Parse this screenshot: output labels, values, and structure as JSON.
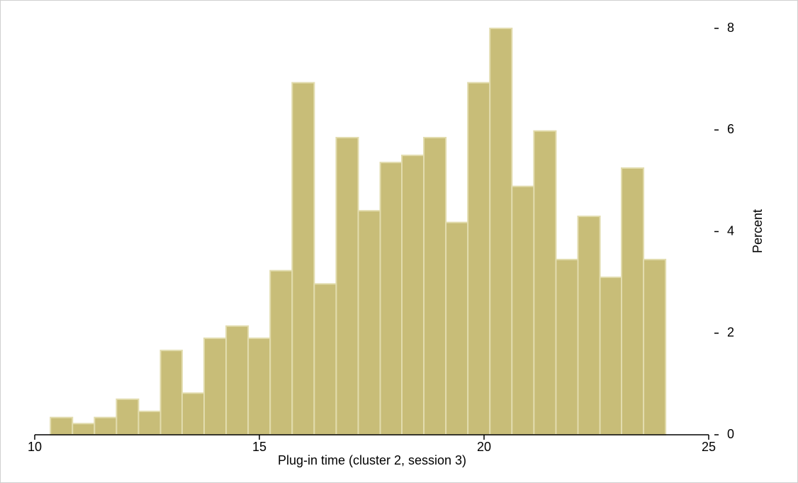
{
  "chart_data": {
    "type": "histogram",
    "xlabel": "Plug-in time (cluster 2, session 3)",
    "ylabel": "Percent",
    "bins": [
      10.35,
      10.84,
      11.33,
      11.82,
      12.31,
      12.8,
      13.28,
      13.77,
      14.26,
      14.75,
      15.24,
      15.73,
      16.22,
      16.71,
      17.2,
      17.69,
      18.17,
      18.66,
      19.15,
      19.64,
      20.13,
      20.62,
      21.11,
      21.6,
      22.09,
      22.58,
      23.06,
      23.55,
      24.04
    ],
    "values": [
      0.34,
      0.22,
      0.34,
      0.7,
      0.46,
      1.66,
      0.82,
      1.9,
      2.14,
      1.9,
      3.23,
      6.93,
      2.97,
      5.85,
      4.41,
      5.36,
      5.5,
      5.85,
      4.18,
      6.93,
      8.0,
      4.89,
      5.98,
      3.45,
      4.3,
      3.1,
      5.25,
      3.45
    ],
    "color": "#c8bd78",
    "xlim": [
      10,
      25
    ],
    "xticks": [
      10,
      15,
      20,
      25
    ],
    "ylim": [
      0,
      8
    ],
    "yticks": [
      0,
      2,
      4,
      6,
      8
    ]
  }
}
